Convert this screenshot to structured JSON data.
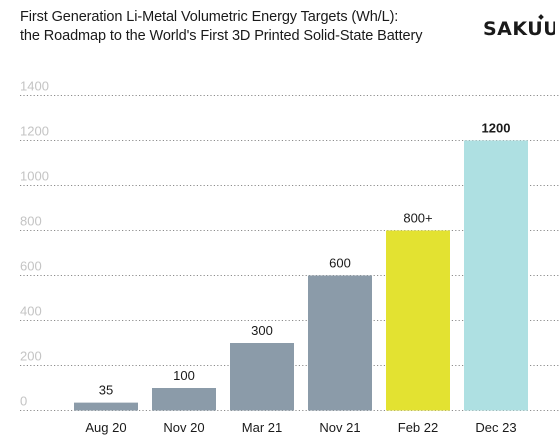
{
  "header": {
    "title_line1": "First Generation Li-Metal Volumetric Energy Targets (Wh/L):",
    "title_line2": "the Roadmap to the World's First 3D Printed Solid-State Battery",
    "logo_text": "SAKUU"
  },
  "colors": {
    "bar_default": "#8b9ba9",
    "bar_highlight_yellow": "#e3e231",
    "bar_highlight_cyan": "#aee0e2",
    "gridline": "#1a1a1a",
    "tick_text": "#c4c4c4",
    "text": "#1a1a1a"
  },
  "chart_data": {
    "type": "bar",
    "title": "First Generation Li-Metal Volumetric Energy Targets (Wh/L): the Roadmap to the World's First 3D Printed Solid-State Battery",
    "xlabel": "",
    "ylabel": "",
    "categories": [
      "Aug 20",
      "Nov 20",
      "Mar 21",
      "Nov 21",
      "Feb 22",
      "Dec 23"
    ],
    "values": [
      35,
      100,
      300,
      600,
      800,
      1200
    ],
    "data_labels": [
      "35",
      "100",
      "300",
      "600",
      "800+",
      "1200"
    ],
    "bar_colors": [
      "#8b9ba9",
      "#8b9ba9",
      "#8b9ba9",
      "#8b9ba9",
      "#e3e231",
      "#aee0e2"
    ],
    "bold_labels": [
      false,
      false,
      false,
      false,
      false,
      true
    ],
    "ylim": [
      0,
      1400
    ],
    "yticks": [
      0,
      200,
      400,
      600,
      800,
      1000,
      1200,
      1400
    ],
    "grid": true,
    "legend": "none"
  }
}
